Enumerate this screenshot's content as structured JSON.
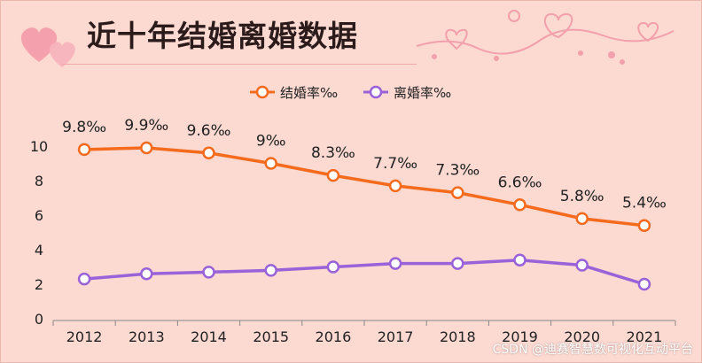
{
  "title": "近十年结婚离婚数据",
  "watermark": "CSDN @迪赛智慧数可视化互动平台",
  "chart_data": {
    "type": "line",
    "title": "近十年结婚离婚数据",
    "x": [
      "2012",
      "2013",
      "2014",
      "2015",
      "2016",
      "2017",
      "2018",
      "2019",
      "2020",
      "2021"
    ],
    "ylim": [
      0,
      10
    ],
    "yticks": [
      0,
      2,
      4,
      6,
      8,
      10
    ],
    "grid": false,
    "legend_position": "top-center",
    "series": [
      {
        "name": "结婚率‰",
        "color": "#f46b1e",
        "values": [
          9.8,
          9.9,
          9.6,
          9,
          8.3,
          7.7,
          7.3,
          6.6,
          5.8,
          5.4
        ],
        "data_labels": [
          "9.8‰",
          "9.9‰",
          "9.6‰",
          "9‰",
          "8.3‰",
          "7.7‰",
          "7.3‰",
          "6.6‰",
          "5.8‰",
          "5.4‰"
        ]
      },
      {
        "name": "离婚率‰",
        "color": "#9a62d8",
        "values": [
          2.3,
          2.6,
          2.7,
          2.8,
          3.0,
          3.2,
          3.2,
          3.4,
          3.1,
          2.0
        ]
      }
    ]
  }
}
